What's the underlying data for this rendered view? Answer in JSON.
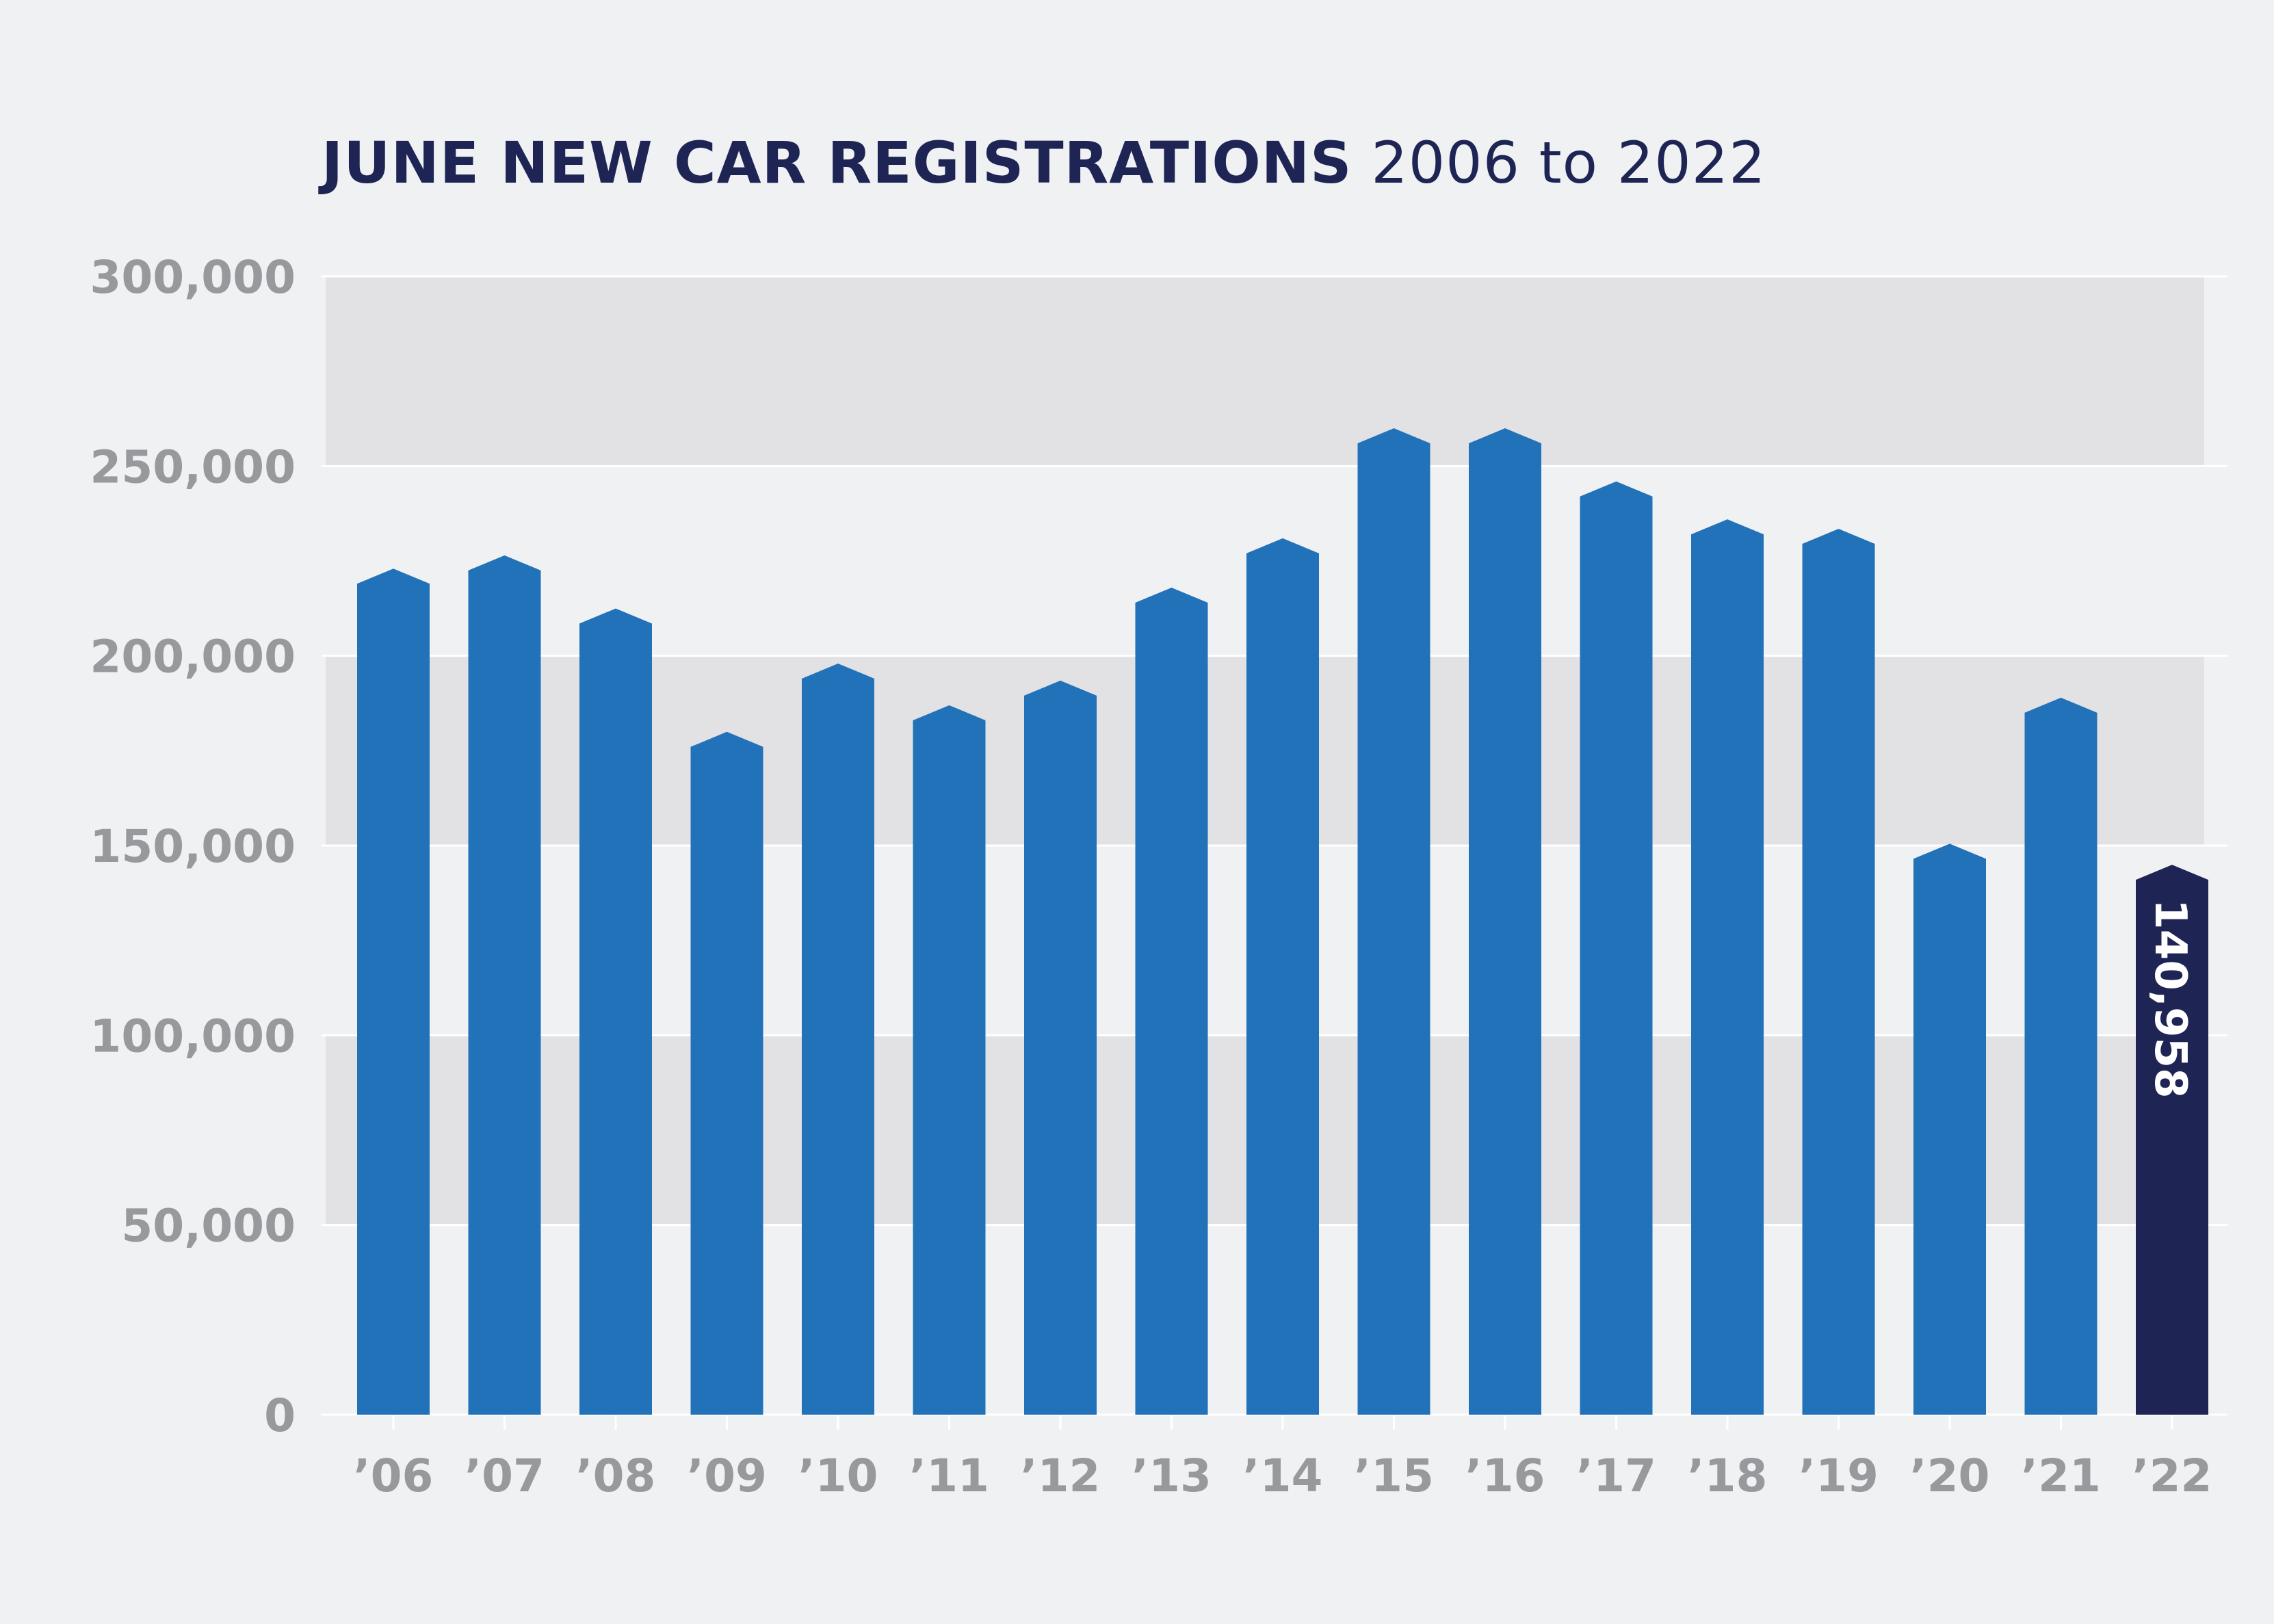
{
  "title": {
    "main": "JUNE NEW CAR REGISTRATIONS",
    "sub": "2006 to 2022"
  },
  "colors": {
    "background": "#f0f1f3",
    "band": "#e2e1e3",
    "bar": "#2272b9",
    "highlight": "#1e2554",
    "gridline": "#ffffff",
    "tick": "#97999c",
    "title": "#1e2554"
  },
  "chart_data": {
    "type": "bar",
    "categories": [
      "’06",
      "’07",
      "’08",
      "’09",
      "’10",
      "’11",
      "’12",
      "’13",
      "’14",
      "’15",
      "’16",
      "’17",
      "’18",
      "’19",
      "’20",
      "’21",
      "’22"
    ],
    "series": [
      {
        "values": [
          219000,
          222500,
          208500,
          176000,
          194000,
          183000,
          189500,
          214000,
          227000,
          256000,
          256000,
          242000,
          232000,
          229500,
          146500,
          185000,
          140958
        ]
      }
    ],
    "highlight_index": 16,
    "data_labels": [
      {
        "index": 16,
        "text": "140,958",
        "orientation": "vertical"
      }
    ],
    "ylim": [
      0,
      300000
    ],
    "yticks": [
      0,
      50000,
      100000,
      150000,
      200000,
      250000,
      300000
    ],
    "ytick_labels": [
      "0",
      "50,000",
      "100,000",
      "150,000",
      "200,000",
      "250,000",
      "300,000"
    ],
    "grid": true,
    "alternating_bands": true,
    "legend": "none"
  }
}
